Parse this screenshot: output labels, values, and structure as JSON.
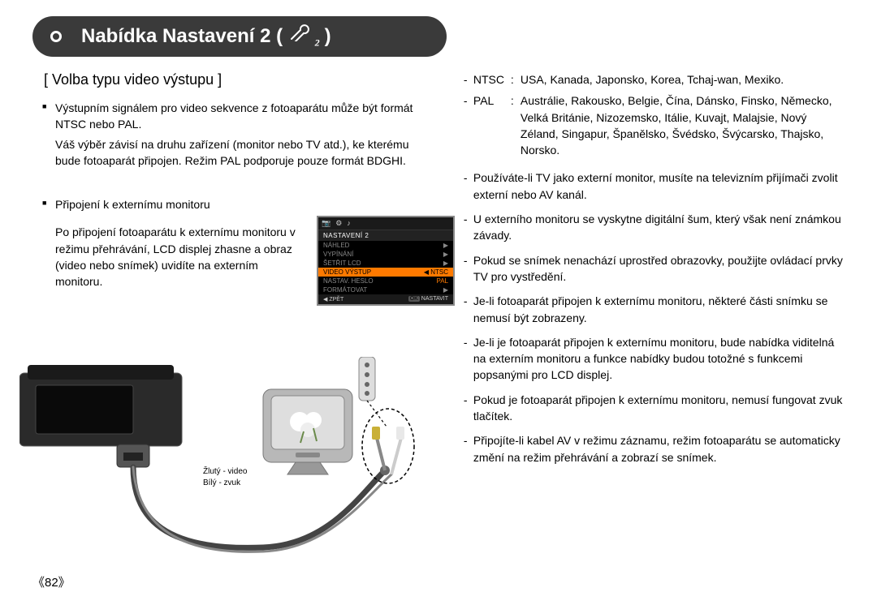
{
  "page_number": "《82》",
  "title": {
    "text": "Nabídka Nastavení 2 (",
    "icon_sub": "2",
    "close": ")"
  },
  "left": {
    "subtitle": "[ Volba typu video výstupu ]",
    "p1": "Výstupním signálem pro video sekvence z fotoaparátu může být formát NTSC nebo PAL.",
    "p1b": "Váš výběr závisí na druhu zařízení (monitor nebo TV atd.), ke kterému bude fotoaparát připojen. Režim PAL podporuje pouze formát BDGHI.",
    "p2_head": "Připojení k externímu monitoru",
    "p2_body": "Po připojení fotoaparátu k externímu monitoru v režimu přehrávání, LCD displej zhasne a obraz (video nebo snímek) uvidíte na externím monitoru."
  },
  "menu": {
    "header": "NASTAVENÍ 2",
    "rows": [
      {
        "label": "NÁHLED",
        "right": "▶",
        "sel": false
      },
      {
        "label": "VYPÍNÁNÍ",
        "right": "▶",
        "sel": false
      },
      {
        "label": "ŠETŘIT LCD",
        "right": "▶",
        "sel": false
      },
      {
        "label": "VIDEO VÝSTUP",
        "right": "◀",
        "val": "NTSC",
        "sel": true
      },
      {
        "label": "NASTAV. HESLO",
        "right": "",
        "val": "PAL",
        "sel": false
      },
      {
        "label": "FORMÁTOVAT",
        "right": "▶",
        "sel": false
      }
    ],
    "footer_left": "◀ ZPĚT",
    "footer_right_ok": "OK",
    "footer_right": "NASTAVIT"
  },
  "cable": {
    "yellow": "Žlutý - video",
    "white": "Bílý - zvuk"
  },
  "right": {
    "ntsc_tag": "NTSC",
    "ntsc_body": "USA, Kanada, Japonsko, Korea, Tchaj-wan, Mexiko.",
    "pal_tag": "PAL",
    "pal_body": "Austrálie, Rakousko, Belgie, Čína, Dánsko, Finsko, Německo, Velká Británie, Nizozemsko, Itálie, Kuvajt, Malajsie, Nový Zéland, Singapur, Španělsko, Švédsko, Švýcarsko, Thajsko, Norsko.",
    "d1": "Používáte-li TV jako externí monitor, musíte na televizním přijímači zvolit externí nebo AV kanál.",
    "d2": "U externího monitoru se vyskytne digitální šum, který však není známkou závady.",
    "d3": "Pokud se snímek nenachází uprostřed obrazovky, použijte ovládací prvky TV pro vystředění.",
    "d4": "Je-li fotoaparát připojen k externímu monitoru, některé části snímku se nemusí být zobrazeny.",
    "d5": "Je-li je fotoaparát připojen k externímu monitoru, bude nabídka viditelná na externím monitoru a funkce nabídky budou totožné s funkcemi popsanými pro LCD displej.",
    "d6": "Pokud je fotoaparát připojen k externímu monitoru, nemusí fungovat zvuk tlačítek.",
    "d7": "Připojíte-li kabel AV v režimu záznamu, režim fotoaparátu se automaticky změní na režim přehrávání a zobrazí se snímek."
  },
  "colors": {
    "pill_bg": "#3a3a3a",
    "menu_sel": "#ff7a00"
  }
}
